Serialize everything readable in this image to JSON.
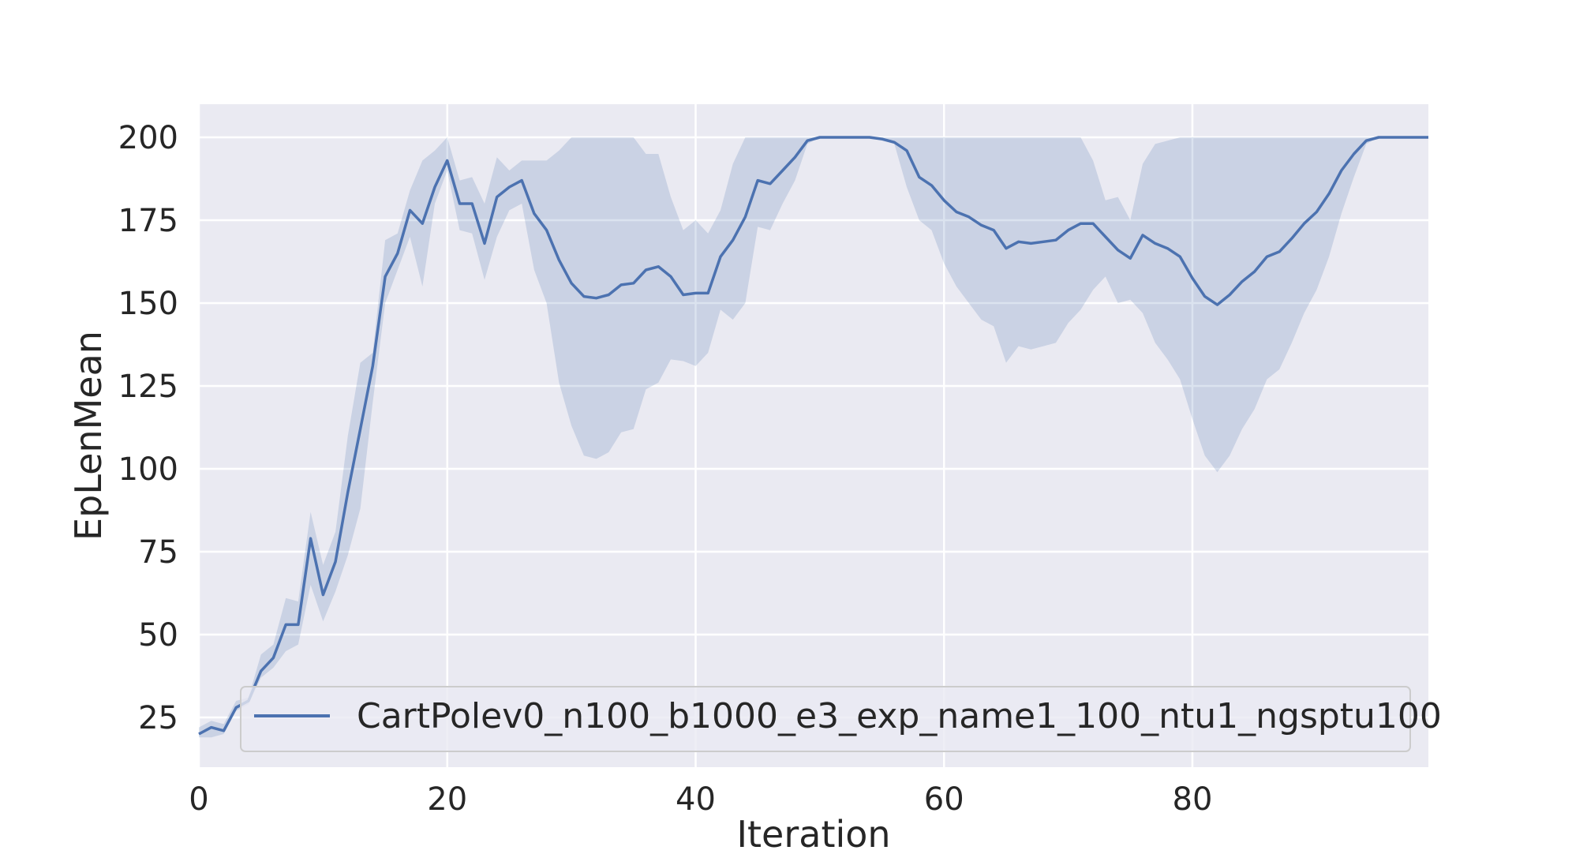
{
  "chart_data": {
    "type": "line",
    "xlabel": "Iteration",
    "ylabel": "EpLenMean",
    "xlim": [
      0,
      99
    ],
    "ylim": [
      10,
      210
    ],
    "xticks": [
      0,
      20,
      40,
      60,
      80
    ],
    "yticks": [
      25,
      50,
      75,
      100,
      125,
      150,
      175,
      200
    ],
    "grid": true,
    "legend_position": "lower right",
    "series": [
      {
        "name": "CartPolev0_n100_b1000_e3_exp_name1_100_ntu1_ngsptu100",
        "color": "#4c72b0",
        "x": [
          0,
          1,
          2,
          3,
          4,
          5,
          6,
          7,
          8,
          9,
          10,
          11,
          12,
          13,
          14,
          15,
          16,
          17,
          18,
          19,
          20,
          21,
          22,
          23,
          24,
          25,
          26,
          27,
          28,
          29,
          30,
          31,
          32,
          33,
          34,
          35,
          36,
          37,
          38,
          39,
          40,
          41,
          42,
          43,
          44,
          45,
          46,
          47,
          48,
          49,
          50,
          51,
          52,
          53,
          54,
          55,
          56,
          57,
          58,
          59,
          60,
          61,
          62,
          63,
          64,
          65,
          66,
          67,
          68,
          69,
          70,
          71,
          72,
          73,
          74,
          75,
          76,
          77,
          78,
          79,
          80,
          81,
          82,
          83,
          84,
          85,
          86,
          87,
          88,
          89,
          90,
          91,
          92,
          93,
          94,
          95,
          96,
          97,
          98,
          99
        ],
        "mean": [
          20,
          22,
          21,
          28,
          30,
          39,
          43,
          53,
          53,
          79,
          62,
          72,
          93,
          112,
          131,
          158,
          165,
          178,
          174,
          185,
          193,
          180,
          180,
          168,
          182,
          185,
          187,
          177,
          172,
          163,
          156,
          152,
          151.5,
          152.5,
          155.5,
          156,
          160,
          161,
          158,
          152.5,
          153,
          153,
          164,
          169,
          176,
          187,
          186,
          190,
          194,
          199,
          200,
          200,
          200,
          200,
          200,
          199.5,
          198.5,
          196,
          188,
          185.5,
          181,
          177.5,
          176,
          173.5,
          172,
          166.5,
          168.5,
          168,
          168.5,
          169,
          172,
          174,
          174,
          170,
          166,
          163.5,
          170.5,
          168,
          166.5,
          164,
          157.5,
          152,
          149.5,
          152.5,
          156.5,
          159.5,
          164,
          165.5,
          169.5,
          174,
          177.5,
          183,
          190,
          195,
          199,
          200,
          200,
          200,
          200,
          200
        ],
        "lower": [
          19,
          19,
          20,
          27,
          29,
          37,
          40,
          45,
          47,
          65,
          54,
          63,
          74,
          88,
          120,
          150,
          160,
          170,
          155,
          180,
          190,
          172,
          171,
          157,
          170,
          178,
          180,
          160,
          150,
          126,
          113,
          104,
          103,
          105,
          111,
          112,
          124,
          126,
          133,
          132.5,
          131,
          135,
          148,
          145,
          150,
          173,
          172,
          180,
          187,
          198,
          200,
          200,
          200,
          200,
          200,
          199,
          198,
          185,
          175,
          172,
          162,
          155,
          150,
          145,
          143,
          132,
          137,
          136,
          137,
          138,
          144,
          148,
          154,
          158,
          150,
          151,
          147,
          138,
          133,
          127,
          115,
          104,
          99,
          104,
          112,
          118,
          127,
          130,
          138,
          147,
          154,
          164,
          177,
          188,
          198,
          200,
          200,
          200,
          200,
          200
        ],
        "upper": [
          22,
          24,
          23,
          30,
          31,
          44,
          47,
          61,
          60,
          87,
          71,
          81,
          110,
          132,
          135,
          169,
          171,
          184,
          193,
          196,
          200,
          187,
          188,
          180,
          194,
          190,
          193,
          193,
          193,
          196,
          200,
          200,
          200,
          200,
          200,
          200,
          195,
          195,
          182,
          172,
          175,
          171,
          178,
          192,
          200,
          200,
          200,
          200,
          200,
          200,
          200,
          200,
          200,
          200,
          200,
          200,
          200,
          200,
          200,
          200,
          200,
          200,
          200,
          200,
          200,
          200,
          200,
          200,
          200,
          200,
          200,
          200,
          193,
          181,
          182,
          175,
          192,
          198,
          199,
          200,
          200,
          200,
          200,
          200,
          200,
          200,
          200,
          200,
          200,
          200,
          200,
          200,
          200,
          200,
          200,
          200,
          200,
          200,
          200,
          200
        ]
      }
    ]
  }
}
